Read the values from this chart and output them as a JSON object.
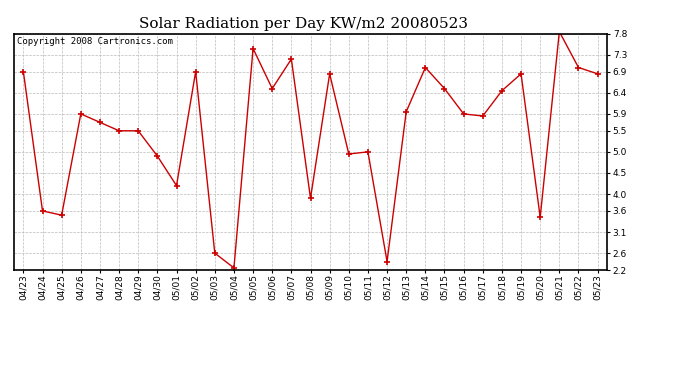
{
  "title": "Solar Radiation per Day KW/m2 20080523",
  "copyright_text": "Copyright 2008 Cartronics.com",
  "labels": [
    "04/23",
    "04/24",
    "04/25",
    "04/26",
    "04/27",
    "04/28",
    "04/29",
    "04/30",
    "05/01",
    "05/02",
    "05/03",
    "05/04",
    "05/05",
    "05/06",
    "05/07",
    "05/08",
    "05/09",
    "05/10",
    "05/11",
    "05/12",
    "05/13",
    "05/14",
    "05/15",
    "05/16",
    "05/17",
    "05/18",
    "05/19",
    "05/20",
    "05/21",
    "05/22",
    "05/23"
  ],
  "values": [
    6.9,
    3.6,
    3.5,
    5.9,
    5.7,
    5.5,
    5.5,
    4.9,
    4.2,
    6.9,
    2.6,
    2.25,
    7.45,
    6.5,
    7.2,
    3.9,
    6.85,
    4.95,
    5.0,
    2.4,
    5.95,
    7.0,
    6.5,
    5.9,
    5.85,
    6.45,
    6.85,
    3.45,
    7.85,
    7.0,
    6.85
  ],
  "line_color": "#cc0000",
  "marker": "+",
  "marker_size": 4,
  "marker_edge_width": 1.2,
  "line_width": 1.0,
  "bg_color": "#ffffff",
  "plot_bg_color": "#ffffff",
  "grid_color": "#bbbbbb",
  "ylim": [
    2.2,
    7.8
  ],
  "yticks": [
    2.2,
    2.6,
    3.1,
    3.6,
    4.0,
    4.5,
    5.0,
    5.5,
    5.9,
    6.4,
    6.9,
    7.3,
    7.8
  ],
  "title_fontsize": 11,
  "copyright_fontsize": 6.5,
  "tick_fontsize": 6.5
}
